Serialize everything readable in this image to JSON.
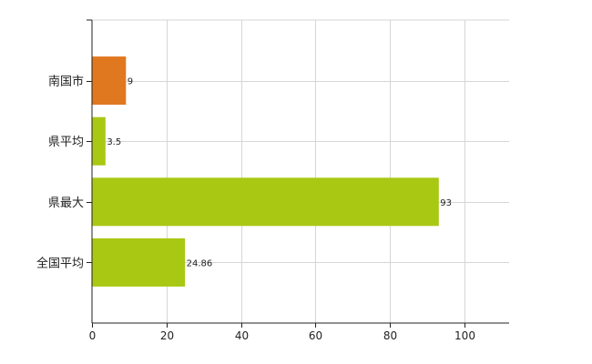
{
  "chart_data": {
    "type": "bar",
    "orientation": "horizontal",
    "categories": [
      "南国市",
      "県平均",
      "県最大",
      "全国平均"
    ],
    "values": [
      9,
      3.5,
      93,
      24.86
    ],
    "value_labels": [
      "9",
      "3.5",
      "93",
      "24.86"
    ],
    "bar_colors": [
      "#e07820",
      "#a8c814",
      "#a8c814",
      "#a8c814"
    ],
    "xlim": [
      0,
      112
    ],
    "xticks": [
      0,
      20,
      40,
      60,
      80,
      100
    ],
    "xtick_labels": [
      "0",
      "20",
      "40",
      "60",
      "80",
      "100"
    ],
    "grid": true,
    "title": "",
    "xlabel": "",
    "ylabel": ""
  }
}
